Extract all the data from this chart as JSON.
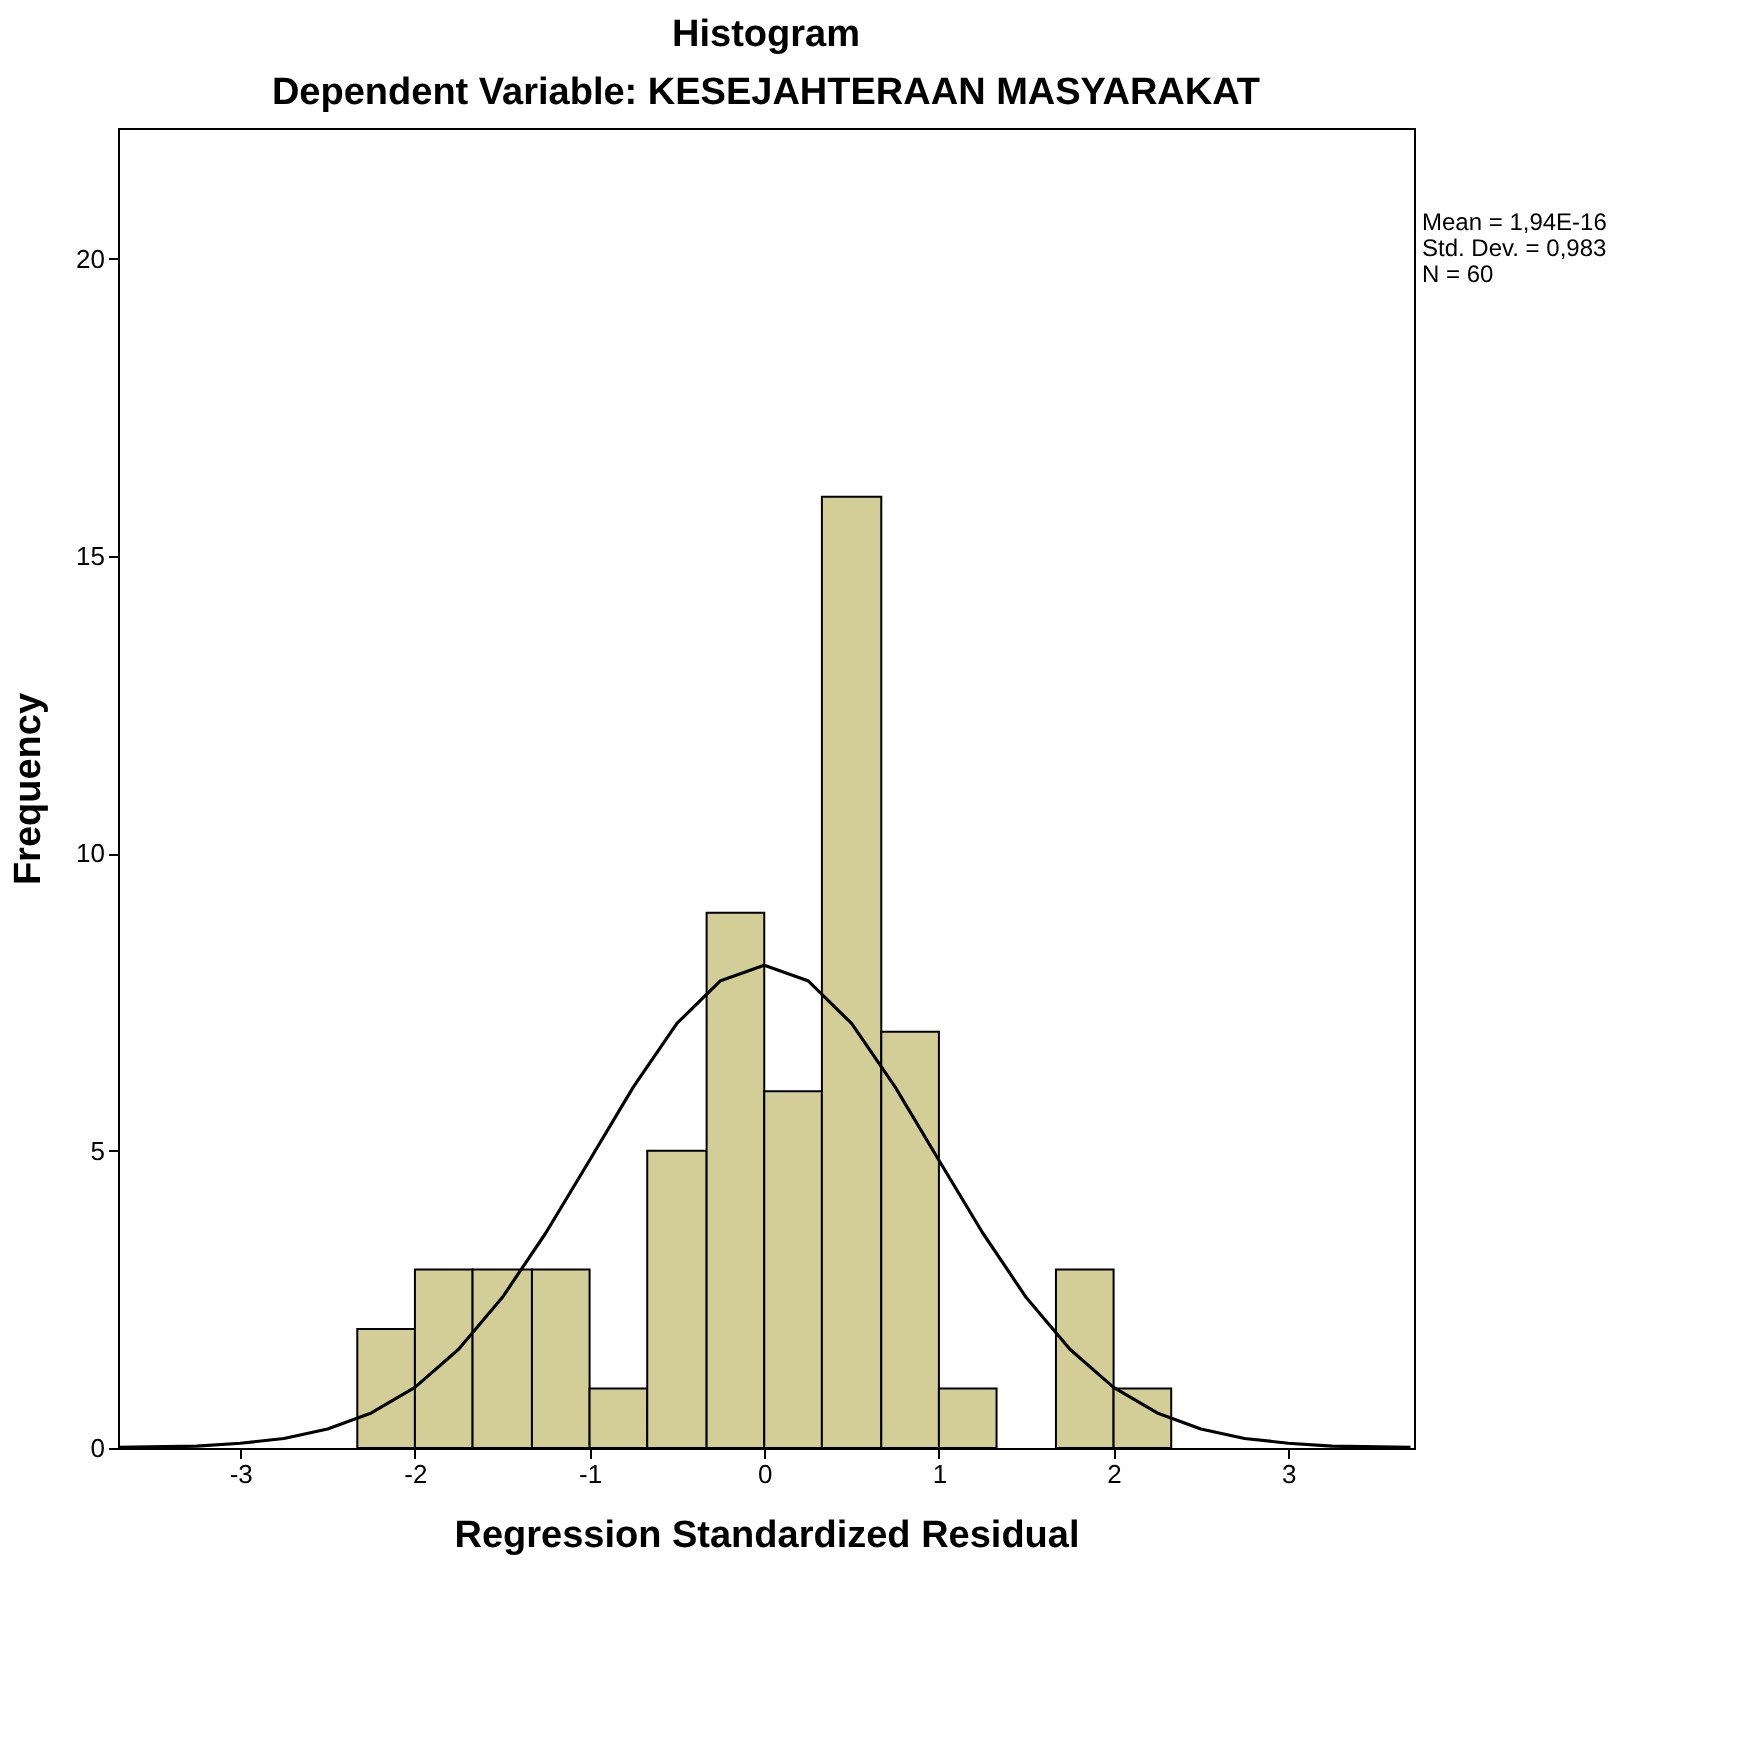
{
  "chart_data": {
    "type": "histogram",
    "title": "Histogram",
    "subtitle": "Dependent Variable: KESEJAHTERAAN MASYARAKAT",
    "xlabel": "Regression Standardized Residual",
    "ylabel": "Frequency",
    "bins": [
      -2.33,
      -2,
      -1.67,
      -1.33,
      -1,
      -0.67,
      -0.33,
      0,
      0.33,
      0.67,
      1,
      1.33,
      1.67,
      2,
      2.33
    ],
    "values": [
      2,
      3,
      3,
      3,
      1,
      5,
      9,
      6,
      16,
      7,
      1,
      0,
      3,
      1
    ],
    "color": "#d3ce97",
    "series": [
      {
        "type": "line",
        "color": "#000000",
        "x": [
          -3.7,
          -3.25,
          -3,
          -2.75,
          -2.5,
          -2.25,
          -2,
          -1.75,
          -1.5,
          -1.25,
          -1,
          -0.75,
          -0.5,
          -0.25,
          0,
          0.25,
          0.5,
          0.75,
          1,
          1.25,
          1.5,
          1.75,
          2,
          2.25,
          2.5,
          2.75,
          3,
          3.25,
          3.7
        ],
        "values": [
          0.01,
          0.03,
          0.08,
          0.16,
          0.32,
          0.59,
          1.02,
          1.66,
          2.53,
          3.62,
          4.84,
          6.07,
          7.14,
          7.86,
          8.12,
          7.86,
          7.14,
          6.07,
          4.84,
          3.62,
          2.53,
          1.66,
          1.02,
          0.59,
          0.32,
          0.16,
          0.08,
          0.03,
          0.01
        ]
      }
    ],
    "annotations": [
      "Mean = 1,94E-16",
      "Std. Dev. = 0,983",
      "N = 60"
    ],
    "xlim": [
      -3.7,
      3.72
    ],
    "xticks": [
      -3,
      -2,
      -1,
      0,
      1,
      2,
      3
    ],
    "ylim": [
      0,
      22.2
    ],
    "yticks": [
      0,
      5,
      10,
      15,
      20
    ],
    "grid": false,
    "marker": "none"
  }
}
